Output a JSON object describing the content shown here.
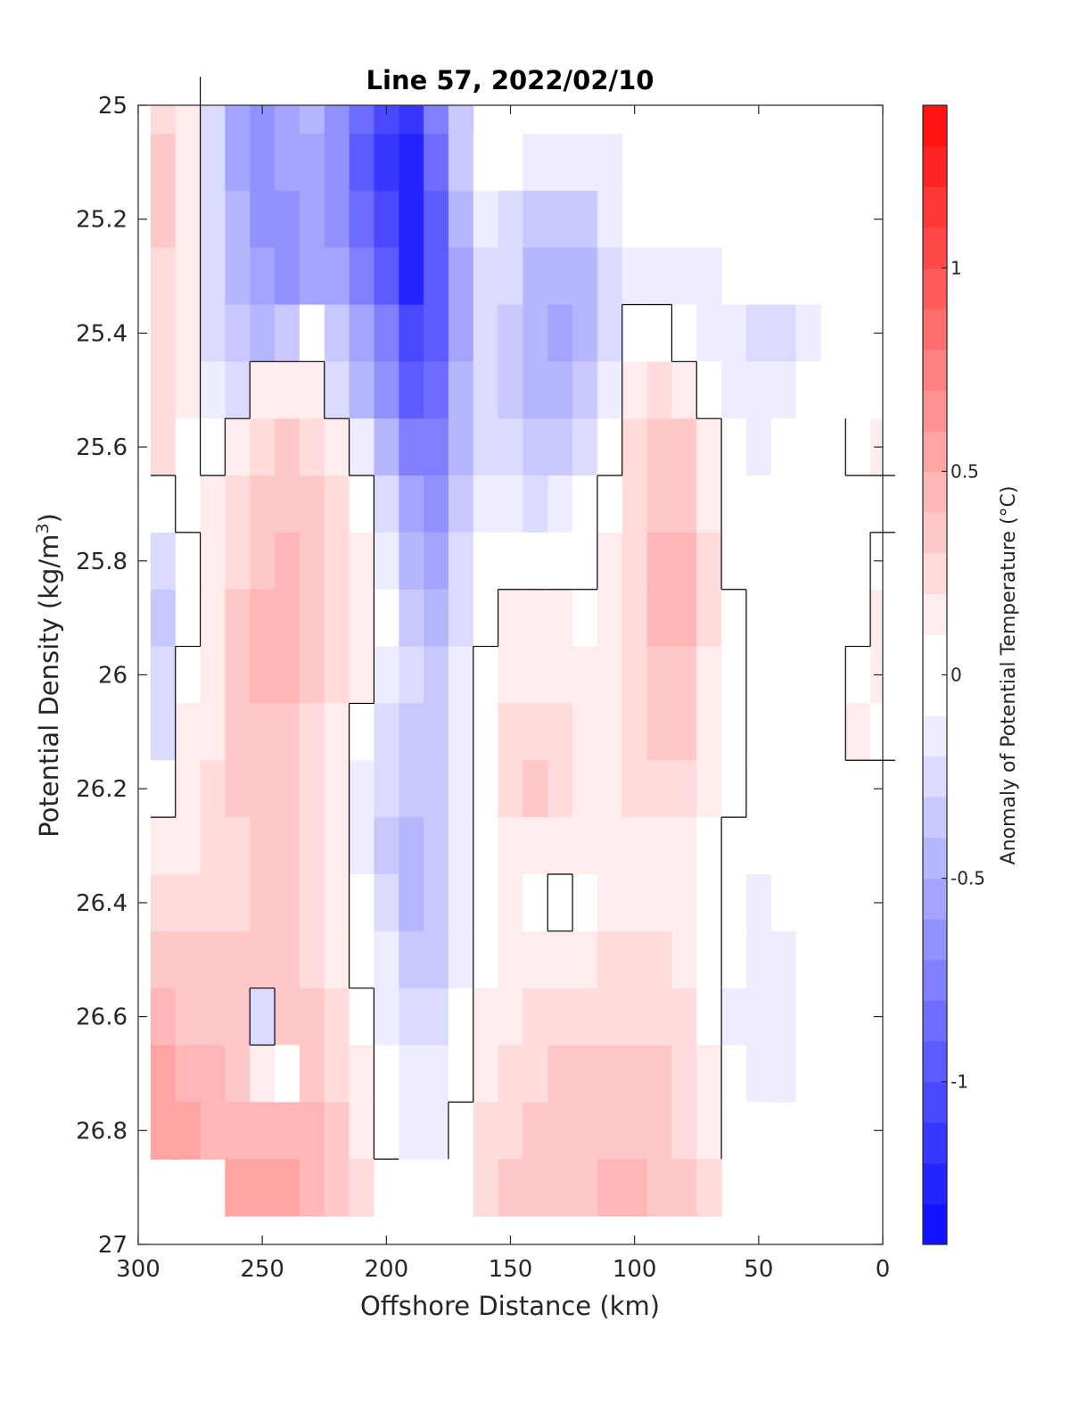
{
  "chart_data": {
    "type": "heatmap",
    "title": "Line 57, 2022/02/10",
    "xlabel": "Offshore Distance (km)",
    "ylabel": "Potential Density (kg/m",
    "ylabel_sup": "3",
    "ylabel_tail": ")",
    "xlim": [
      300,
      0
    ],
    "ylim": [
      27,
      25
    ],
    "x_reversed": true,
    "y_reversed": true,
    "x_ticks": [
      300,
      250,
      200,
      150,
      100,
      50,
      0
    ],
    "x_tick_labels": [
      "300",
      "250",
      "200",
      "150",
      "100",
      "50",
      "0"
    ],
    "y_ticks": [
      25,
      25.2,
      25.4,
      25.6,
      25.8,
      26,
      26.2,
      26.4,
      26.6,
      26.8,
      27
    ],
    "y_tick_labels": [
      "25",
      "25.2",
      "25.4",
      "25.6",
      "25.8",
      "26",
      "26.2",
      "26.4",
      "26.6",
      "26.8",
      "27"
    ],
    "colorbar": {
      "label": "Anomaly of Potential Temperature (°C)",
      "range": [
        -1.4,
        1.4
      ],
      "step": 0.1,
      "ticks": [
        -1,
        -0.5,
        0,
        0.5,
        1
      ],
      "tick_labels": [
        "-1",
        "-0.5",
        "0",
        "0.5",
        "1"
      ],
      "colormap": "blue-white-red",
      "neg_color": "#0000ff",
      "pos_color": "#ff0000",
      "zero_color": "#ffffff"
    },
    "grid": false,
    "zero_contour_color": "#000000",
    "x": [
      290,
      280,
      270,
      260,
      250,
      240,
      230,
      220,
      210,
      200,
      190,
      180,
      170,
      160,
      150,
      140,
      130,
      120,
      110,
      100,
      90,
      80,
      70,
      60,
      50,
      40,
      30,
      20,
      10,
      0
    ],
    "y": [
      25.0,
      25.1,
      25.2,
      25.3,
      25.4,
      25.5,
      25.6,
      25.7,
      25.8,
      25.9,
      26.0,
      26.1,
      26.2,
      26.3,
      26.4,
      26.5,
      26.6,
      26.7,
      26.8,
      26.9
    ],
    "z": [
      [
        0.2,
        0.1,
        -0.2,
        -0.5,
        -0.6,
        -0.5,
        -0.4,
        -0.6,
        -0.8,
        -1.0,
        -1.1,
        -0.7,
        -0.3,
        null,
        null,
        null,
        null,
        null,
        null,
        null,
        null,
        null,
        null,
        null,
        null,
        null,
        null,
        null,
        null,
        null
      ],
      [
        0.3,
        0.1,
        -0.2,
        -0.5,
        -0.6,
        -0.5,
        -0.5,
        -0.6,
        -0.9,
        -1.1,
        -1.2,
        -0.8,
        -0.3,
        0.0,
        -0.05,
        -0.1,
        -0.15,
        -0.15,
        -0.1,
        null,
        null,
        null,
        null,
        null,
        null,
        null,
        null,
        null,
        null,
        null
      ],
      [
        0.3,
        0.1,
        -0.2,
        -0.4,
        -0.6,
        -0.6,
        -0.5,
        -0.6,
        -0.8,
        -1.0,
        -1.2,
        -0.9,
        -0.4,
        -0.1,
        -0.2,
        -0.3,
        -0.35,
        -0.3,
        -0.15,
        null,
        null,
        null,
        null,
        null,
        null,
        null,
        null,
        null,
        null,
        null
      ],
      [
        0.25,
        0.1,
        -0.2,
        -0.4,
        -0.5,
        -0.6,
        -0.5,
        -0.5,
        -0.7,
        -0.9,
        -1.2,
        -0.9,
        -0.5,
        -0.2,
        -0.25,
        -0.4,
        -0.45,
        -0.4,
        -0.2,
        -0.1,
        -0.1,
        -0.1,
        -0.15,
        null,
        null,
        null,
        null,
        null,
        null,
        null
      ],
      [
        0.25,
        0.1,
        -0.2,
        -0.35,
        -0.4,
        -0.3,
        -0.05,
        -0.3,
        -0.5,
        -0.7,
        -1.0,
        -0.9,
        -0.5,
        -0.2,
        -0.3,
        -0.45,
        -0.5,
        -0.4,
        -0.2,
        0.05,
        0.05,
        0.0,
        -0.1,
        -0.15,
        -0.2,
        -0.2,
        -0.1,
        null,
        null,
        null
      ],
      [
        0.2,
        0.1,
        -0.1,
        -0.2,
        0.1,
        0.15,
        0.1,
        -0.2,
        -0.4,
        -0.6,
        -0.9,
        -0.8,
        -0.4,
        -0.2,
        -0.3,
        -0.4,
        -0.4,
        -0.3,
        -0.1,
        0.15,
        0.2,
        0.15,
        0.0,
        -0.1,
        -0.15,
        -0.1,
        -0.05,
        -0.05,
        null,
        null
      ],
      [
        0.2,
        0.05,
        0.0,
        0.1,
        0.2,
        0.3,
        0.2,
        0.1,
        -0.1,
        -0.4,
        -0.7,
        -0.7,
        -0.4,
        -0.2,
        -0.25,
        -0.3,
        -0.3,
        -0.2,
        -0.05,
        0.2,
        0.35,
        0.3,
        0.1,
        -0.05,
        -0.1,
        -0.05,
        -0.05,
        0.0,
        0.05,
        0.1
      ],
      [
        0.0,
        0.05,
        0.1,
        0.2,
        0.3,
        0.35,
        0.3,
        0.2,
        0.05,
        -0.2,
        -0.5,
        -0.6,
        -0.3,
        -0.1,
        -0.15,
        -0.2,
        -0.15,
        -0.05,
        0.05,
        0.2,
        0.35,
        0.35,
        0.15,
        0.0,
        -0.05,
        -0.05,
        -0.05,
        0.0,
        0.0,
        0.0
      ],
      [
        -0.2,
        0.0,
        0.1,
        0.25,
        0.35,
        0.4,
        0.3,
        0.25,
        0.1,
        -0.1,
        -0.4,
        -0.5,
        -0.25,
        -0.05,
        -0.05,
        0.0,
        0.0,
        0.0,
        0.1,
        0.25,
        0.4,
        0.45,
        0.2,
        0.0,
        0.0,
        0.0,
        0.0,
        0.0,
        0.0,
        0.05
      ],
      [
        -0.3,
        0.0,
        0.1,
        0.3,
        0.45,
        0.45,
        0.3,
        0.25,
        0.15,
        -0.05,
        -0.3,
        -0.4,
        -0.2,
        0.0,
        0.1,
        0.1,
        0.1,
        0.05,
        0.1,
        0.25,
        0.4,
        0.45,
        0.2,
        0.05,
        0.0,
        0.0,
        0.0,
        0.0,
        0.0,
        0.1
      ],
      [
        -0.25,
        0.05,
        0.1,
        0.3,
        0.4,
        0.4,
        0.3,
        0.2,
        0.1,
        -0.1,
        -0.25,
        -0.3,
        -0.15,
        0.05,
        0.15,
        0.15,
        0.15,
        0.1,
        0.1,
        0.2,
        0.35,
        0.35,
        0.15,
        0.05,
        0.0,
        0.0,
        0.0,
        0.0,
        0.05,
        0.1
      ],
      [
        -0.2,
        0.1,
        0.15,
        0.3,
        0.35,
        0.35,
        0.25,
        0.15,
        0.0,
        -0.2,
        -0.3,
        -0.3,
        -0.1,
        0.05,
        0.2,
        0.25,
        0.2,
        0.1,
        0.1,
        0.2,
        0.3,
        0.3,
        0.15,
        0.05,
        0.0,
        0.0,
        0.0,
        0.0,
        0.1,
        0.05
      ],
      [
        0.0,
        0.1,
        0.2,
        0.3,
        0.35,
        0.3,
        0.25,
        0.1,
        -0.1,
        -0.25,
        -0.35,
        -0.3,
        -0.1,
        0.05,
        0.2,
        0.3,
        0.2,
        0.15,
        0.15,
        0.2,
        0.25,
        0.2,
        0.1,
        0.05,
        0.0,
        0.0,
        0.0,
        0.0,
        0.0,
        0.0
      ],
      [
        0.1,
        0.15,
        0.2,
        0.25,
        0.3,
        0.3,
        0.2,
        0.1,
        -0.1,
        -0.3,
        -0.4,
        -0.3,
        -0.1,
        0.05,
        0.15,
        0.15,
        0.15,
        0.15,
        0.15,
        0.15,
        0.15,
        0.1,
        0.05,
        0.0,
        -0.05,
        -0.05,
        0.0,
        0.0,
        0.0,
        0.0
      ],
      [
        0.2,
        0.2,
        0.2,
        0.25,
        0.3,
        0.3,
        0.25,
        0.1,
        -0.05,
        -0.25,
        -0.4,
        -0.3,
        -0.1,
        0.05,
        0.1,
        0.05,
        -0.05,
        0.05,
        0.1,
        0.15,
        0.15,
        0.1,
        0.05,
        -0.05,
        -0.1,
        -0.05,
        -0.05,
        null,
        null,
        null
      ],
      [
        0.3,
        0.3,
        0.3,
        0.3,
        0.3,
        0.3,
        0.25,
        0.15,
        0.0,
        -0.15,
        -0.3,
        -0.3,
        -0.1,
        0.05,
        0.1,
        0.1,
        0.1,
        0.15,
        0.2,
        0.2,
        0.2,
        0.15,
        0.05,
        -0.05,
        -0.1,
        -0.1,
        -0.05,
        null,
        null,
        null
      ],
      [
        0.4,
        0.35,
        0.35,
        0.3,
        -0.2,
        0.3,
        0.3,
        0.2,
        0.05,
        -0.1,
        -0.2,
        -0.2,
        -0.05,
        0.1,
        0.15,
        0.2,
        0.2,
        0.25,
        0.25,
        0.25,
        0.25,
        0.2,
        0.05,
        -0.1,
        -0.15,
        -0.1,
        -0.05,
        null,
        null,
        null
      ],
      [
        0.5,
        0.45,
        0.4,
        0.35,
        0.1,
        0.05,
        0.3,
        0.25,
        0.1,
        -0.05,
        -0.15,
        -0.15,
        0.0,
        0.15,
        0.2,
        0.25,
        0.3,
        0.3,
        0.3,
        0.3,
        0.3,
        0.25,
        0.1,
        -0.05,
        -0.15,
        -0.1,
        -0.05,
        null,
        null,
        null
      ],
      [
        0.55,
        0.5,
        0.45,
        0.45,
        0.4,
        0.4,
        0.4,
        0.3,
        0.15,
        0.0,
        -0.1,
        -0.1,
        0.05,
        0.2,
        0.25,
        0.3,
        0.3,
        0.35,
        0.35,
        0.35,
        0.3,
        0.25,
        0.1,
        0.0,
        -0.05,
        null,
        null,
        null,
        null,
        null
      ],
      [
        null,
        null,
        null,
        0.5,
        0.55,
        0.5,
        0.45,
        0.35,
        0.2,
        0.05,
        null,
        null,
        null,
        0.2,
        0.3,
        0.3,
        0.3,
        0.35,
        0.4,
        0.4,
        0.35,
        0.3,
        0.2,
        null,
        null,
        null,
        null,
        null,
        null,
        null
      ]
    ]
  }
}
